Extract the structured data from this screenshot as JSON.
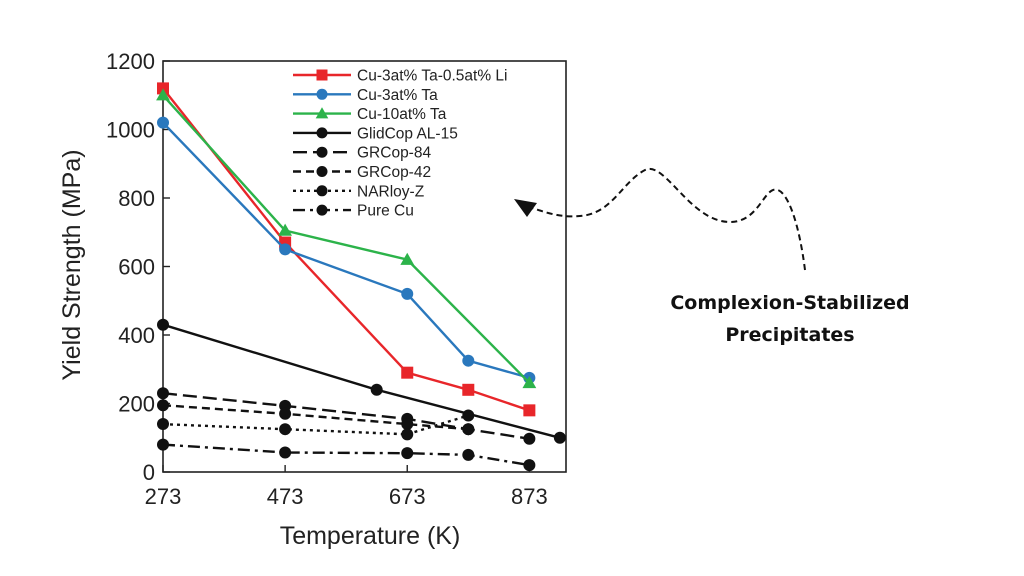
{
  "chart_data": {
    "type": "line",
    "xlabel": "Temperature (K)",
    "ylabel": "Yield Strength (MPa)",
    "xlim": [
      273,
      933
    ],
    "ylim": [
      0,
      1200
    ],
    "xticks": [
      273,
      473,
      673,
      873
    ],
    "yticks": [
      0,
      200,
      400,
      600,
      800,
      1000,
      1200
    ],
    "grid": false,
    "legend_position": "top-right",
    "series": [
      {
        "name": "Cu-3at% Ta-0.5at% Li",
        "color": "#e8262a",
        "marker": "square",
        "dash": "solid",
        "x": [
          273,
          473,
          673,
          773,
          873
        ],
        "y": [
          1120,
          670,
          290,
          240,
          180
        ]
      },
      {
        "name": "Cu-3at% Ta",
        "color": "#2a78bd",
        "marker": "circle",
        "dash": "solid",
        "x": [
          273,
          473,
          673,
          773,
          873
        ],
        "y": [
          1020,
          650,
          520,
          325,
          275
        ]
      },
      {
        "name": "Cu-10at% Ta",
        "color": "#2cb34a",
        "marker": "triangle",
        "dash": "solid",
        "x": [
          273,
          473,
          673,
          873
        ],
        "y": [
          1100,
          705,
          620,
          260
        ]
      },
      {
        "name": "GlidCop AL-15",
        "color": "#111111",
        "marker": "circle",
        "dash": "solid",
        "x": [
          273,
          623,
          923
        ],
        "y": [
          430,
          240,
          100
        ]
      },
      {
        "name": "GRCop-84",
        "color": "#111111",
        "marker": "circle",
        "dash": "longdash",
        "x": [
          273,
          473,
          673,
          773,
          873
        ],
        "y": [
          230,
          193,
          155,
          125,
          97
        ]
      },
      {
        "name": "GRCop-42",
        "color": "#111111",
        "marker": "circle",
        "dash": "dash",
        "x": [
          273,
          473,
          673,
          773
        ],
        "y": [
          195,
          170,
          140,
          125
        ]
      },
      {
        "name": "NARloy-Z",
        "color": "#111111",
        "marker": "circle",
        "dash": "dot",
        "x": [
          273,
          473,
          673,
          773
        ],
        "y": [
          140,
          125,
          110,
          165
        ]
      },
      {
        "name": "Pure Cu",
        "color": "#111111",
        "marker": "circle",
        "dash": "dashdot",
        "x": [
          273,
          473,
          673,
          773,
          873
        ],
        "y": [
          80,
          57,
          55,
          50,
          20
        ]
      }
    ]
  },
  "annotation": {
    "line1": "Complexion-Stabilized",
    "line2": "Precipitates"
  }
}
